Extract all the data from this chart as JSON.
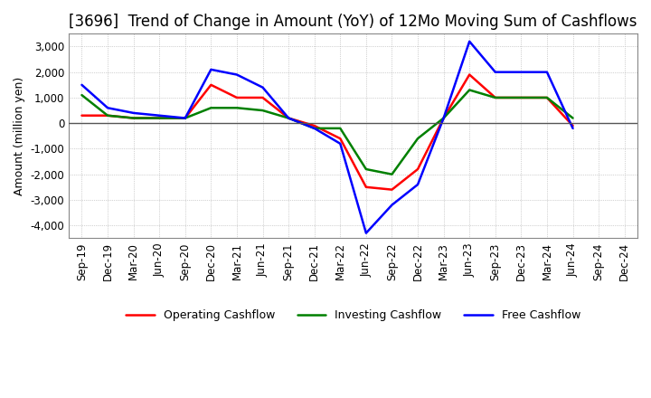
{
  "title": "[3696]  Trend of Change in Amount (YoY) of 12Mo Moving Sum of Cashflows",
  "ylabel": "Amount (million yen)",
  "x_labels": [
    "Sep-19",
    "Dec-19",
    "Mar-20",
    "Jun-20",
    "Sep-20",
    "Dec-20",
    "Mar-21",
    "Jun-21",
    "Sep-21",
    "Dec-21",
    "Mar-22",
    "Jun-22",
    "Sep-22",
    "Dec-22",
    "Mar-23",
    "Jun-23",
    "Sep-23",
    "Dec-23",
    "Mar-24",
    "Jun-24",
    "Sep-24",
    "Dec-24"
  ],
  "operating": [
    300,
    300,
    200,
    200,
    200,
    1500,
    1000,
    1000,
    200,
    -100,
    -600,
    -2500,
    -2600,
    -1800,
    200,
    1900,
    1000,
    1000,
    1000,
    -100,
    null,
    null
  ],
  "investing": [
    1100,
    300,
    200,
    200,
    200,
    600,
    600,
    500,
    200,
    -200,
    -200,
    -1800,
    -2000,
    -600,
    200,
    1300,
    1000,
    1000,
    1000,
    200,
    null,
    null
  ],
  "free": [
    1500,
    600,
    400,
    300,
    200,
    2100,
    1900,
    1400,
    200,
    -200,
    -800,
    -4300,
    -3200,
    -2400,
    200,
    3200,
    2000,
    2000,
    2000,
    -200,
    null,
    null
  ],
  "ylim": [
    -4500,
    3500
  ],
  "yticks": [
    -4000,
    -3000,
    -2000,
    -1000,
    0,
    1000,
    2000,
    3000
  ],
  "operating_color": "#ff0000",
  "investing_color": "#008000",
  "free_color": "#0000ff",
  "bg_color": "#ffffff",
  "grid_color": "#aaaaaa",
  "zero_line_color": "#555555",
  "title_fontsize": 12,
  "label_fontsize": 9,
  "tick_fontsize": 8.5
}
